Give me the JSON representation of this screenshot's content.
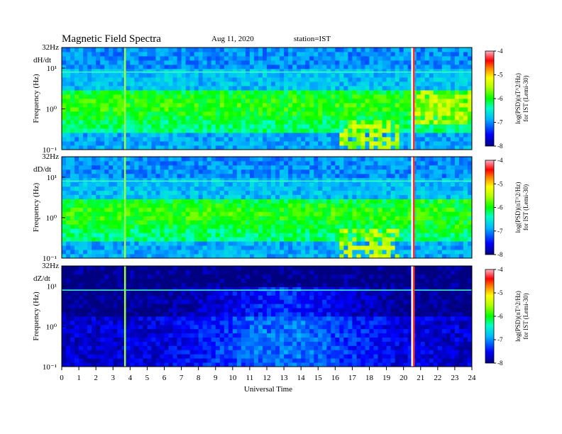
{
  "header": {
    "title": "Magnetic  Field  Spectra",
    "date": "Aug 11, 2020",
    "station": "station=IST"
  },
  "chart_data": [
    {
      "type": "heatmap",
      "panel": "dH/dt",
      "ytop_label": "32Hz",
      "ylabel": "Frequency  (Hz)",
      "yticks": [
        "10¹",
        "10⁰",
        "10⁻¹"
      ],
      "ylog": true,
      "ylim": [
        0.1,
        32
      ],
      "xlim": [
        0,
        24
      ],
      "colorbar": {
        "label_line1": "log(PSD)(nT^2/Hz)",
        "label_line2": "for IST (Lemi-30)",
        "ticks": [
          "-4",
          "-5",
          "-6",
          "-7",
          "-8"
        ],
        "range": [
          -8,
          -4
        ]
      },
      "features": [
        {
          "from_hour": 16.3,
          "to_hour": 19.8,
          "freq_hz": [
            0.1,
            0.5
          ],
          "log_psd": -5.5
        },
        {
          "from_hour": 20.4,
          "to_hour": 24.0,
          "freq_hz": [
            0.4,
            3.0
          ],
          "log_psd": -5.5
        }
      ]
    },
    {
      "type": "heatmap",
      "panel": "dD/dt",
      "ytop_label": "32Hz",
      "ylabel": "Frequency  (Hz)",
      "yticks": [
        "10¹",
        "10⁰",
        "10⁻¹"
      ],
      "ylog": true,
      "ylim": [
        0.1,
        32
      ],
      "xlim": [
        0,
        24
      ],
      "colorbar": {
        "label_line1": "log(PSD)(nT^2/Hz)",
        "label_line2": "for IST (Lemi-30)",
        "ticks": [
          "-4",
          "-5",
          "-6",
          "-7",
          "-8"
        ],
        "range": [
          -8,
          -4
        ]
      },
      "features": [
        {
          "from_hour": 16.3,
          "to_hour": 19.8,
          "freq_hz": [
            0.1,
            0.5
          ],
          "log_psd": -5.5
        },
        {
          "from_hour": 20.4,
          "to_hour": 24.0,
          "freq_hz": [
            0.4,
            3.0
          ],
          "log_psd": -6.0
        }
      ]
    },
    {
      "type": "heatmap",
      "panel": "dZ/dt",
      "ytop_label": "32Hz",
      "ylabel": "Frequency  (Hz)",
      "yticks": [
        "10¹",
        "10⁰",
        "10⁻¹"
      ],
      "ylog": true,
      "ylim": [
        0.1,
        32
      ],
      "xlim": [
        0,
        24
      ],
      "colorbar": {
        "label_line1": "log(PSD)(nT^2/Hz)",
        "label_line2": "for IST (Lemi-30)",
        "ticks": [
          "-4",
          "-5",
          "-6",
          "-7",
          "-8"
        ],
        "range": [
          -8,
          -4
        ]
      },
      "features": [
        {
          "from_hour": 0,
          "to_hour": 24,
          "freq_hz": [
            10,
            32
          ],
          "log_psd": -8.0
        }
      ]
    }
  ],
  "x_axis": {
    "label": "Universal Time",
    "ticks": [
      "0",
      "1",
      "2",
      "3",
      "4",
      "5",
      "6",
      "7",
      "8",
      "9",
      "10",
      "11",
      "12",
      "13",
      "14",
      "15",
      "16",
      "17",
      "18",
      "19",
      "20",
      "21",
      "22",
      "23",
      "24"
    ]
  }
}
